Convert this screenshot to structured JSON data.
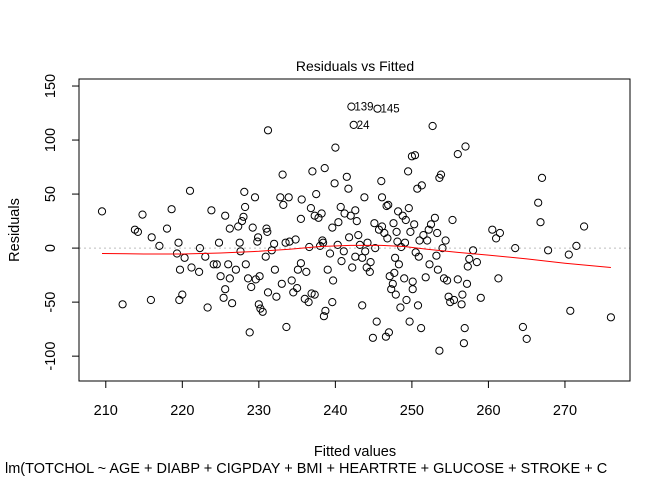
{
  "chart_data": {
    "type": "scatter",
    "title": "Residuals vs Fitted",
    "xlabel": "Fitted values",
    "ylabel": "Residuals",
    "subtitle": "lm(TOTCHOL ~ AGE + DIABP + CIGPDAY + BMI + HEARTRTE + GLUCOSE + STROKE + C",
    "xlim": [
      206.5,
      278.5
    ],
    "ylim": [
      -123.0,
      156.5
    ],
    "xticks": [
      210,
      220,
      230,
      240,
      250,
      260,
      270
    ],
    "yticks": [
      -100,
      -50,
      0,
      50,
      100,
      150
    ],
    "zero_line": 0,
    "zero_line_color": "#bebebe",
    "smoother_color": "#ff0000",
    "point_color": "#000000",
    "smoother": [
      [
        209.5,
        -5
      ],
      [
        215,
        -5.5
      ],
      [
        220,
        -5.5
      ],
      [
        225,
        -4.5
      ],
      [
        230,
        -3
      ],
      [
        234,
        -1
      ],
      [
        238,
        1.5
      ],
      [
        242,
        2.5
      ],
      [
        246,
        2.5
      ],
      [
        249,
        1.5
      ],
      [
        252,
        -1
      ],
      [
        256,
        -4
      ],
      [
        260,
        -6.5
      ],
      [
        265,
        -10
      ],
      [
        270,
        -14
      ],
      [
        276,
        -18
      ]
    ],
    "points": [
      [
        209.5,
        34
      ],
      [
        212.2,
        -52
      ],
      [
        213.8,
        17
      ],
      [
        214.2,
        15
      ],
      [
        214.8,
        31
      ],
      [
        216.0,
        10
      ],
      [
        215.9,
        -48
      ],
      [
        217.0,
        2
      ],
      [
        218.0,
        18
      ],
      [
        218.6,
        36
      ],
      [
        219.3,
        -5
      ],
      [
        219.5,
        5
      ],
      [
        219.6,
        -48
      ],
      [
        219.7,
        -20
      ],
      [
        220.0,
        -43
      ],
      [
        220.3,
        -9
      ],
      [
        221.0,
        53
      ],
      [
        221.2,
        -18
      ],
      [
        222.2,
        -22
      ],
      [
        222.3,
        0
      ],
      [
        223.0,
        -8
      ],
      [
        223.3,
        -55
      ],
      [
        223.8,
        35
      ],
      [
        224.1,
        -15
      ],
      [
        224.5,
        -15
      ],
      [
        224.8,
        5
      ],
      [
        225.0,
        -26
      ],
      [
        225.4,
        -46
      ],
      [
        225.6,
        30
      ],
      [
        225.6,
        -38
      ],
      [
        226.0,
        -15
      ],
      [
        226.2,
        18
      ],
      [
        226.2,
        -28
      ],
      [
        226.5,
        -51
      ],
      [
        227.0,
        -20
      ],
      [
        227.3,
        20
      ],
      [
        227.5,
        5
      ],
      [
        227.6,
        -3
      ],
      [
        227.8,
        25
      ],
      [
        228.0,
        29
      ],
      [
        228.1,
        52
      ],
      [
        228.2,
        38
      ],
      [
        228.3,
        -15
      ],
      [
        228.6,
        -28
      ],
      [
        228.8,
        -78
      ],
      [
        229.0,
        -36
      ],
      [
        229.2,
        19
      ],
      [
        229.5,
        47
      ],
      [
        229.6,
        -29
      ],
      [
        229.8,
        6
      ],
      [
        229.9,
        10
      ],
      [
        230.0,
        -52
      ],
      [
        230.1,
        -26
      ],
      [
        230.2,
        -56
      ],
      [
        230.5,
        -59
      ],
      [
        230.9,
        -8
      ],
      [
        231.0,
        18
      ],
      [
        231.1,
        15
      ],
      [
        231.2,
        109
      ],
      [
        231.2,
        -41
      ],
      [
        231.7,
        -2
      ],
      [
        232.0,
        4
      ],
      [
        232.1,
        -20
      ],
      [
        232.3,
        -45
      ],
      [
        232.8,
        47
      ],
      [
        233.0,
        -33
      ],
      [
        233.1,
        68
      ],
      [
        233.2,
        40
      ],
      [
        233.5,
        5
      ],
      [
        233.6,
        -73
      ],
      [
        233.9,
        47
      ],
      [
        234.0,
        6
      ],
      [
        234.3,
        -30
      ],
      [
        234.5,
        -41
      ],
      [
        234.8,
        8
      ],
      [
        235.0,
        -37
      ],
      [
        235.1,
        -20
      ],
      [
        235.5,
        27
      ],
      [
        235.5,
        -14
      ],
      [
        235.6,
        45
      ],
      [
        236.0,
        -47
      ],
      [
        236.2,
        -22
      ],
      [
        236.5,
        -50
      ],
      [
        236.6,
        1
      ],
      [
        236.8,
        37
      ],
      [
        236.9,
        -42
      ],
      [
        237.0,
        71
      ],
      [
        237.3,
        30
      ],
      [
        237.3,
        -43
      ],
      [
        237.5,
        50
      ],
      [
        237.8,
        28
      ],
      [
        238.0,
        2
      ],
      [
        238.2,
        32
      ],
      [
        238.3,
        7
      ],
      [
        238.4,
        5
      ],
      [
        238.5,
        -63
      ],
      [
        238.6,
        74
      ],
      [
        238.7,
        -58
      ],
      [
        239.0,
        -20
      ],
      [
        239.3,
        -5
      ],
      [
        239.6,
        19
      ],
      [
        239.6,
        -50
      ],
      [
        239.7,
        -30
      ],
      [
        239.9,
        60
      ],
      [
        240.0,
        93
      ],
      [
        240.3,
        3
      ],
      [
        240.4,
        24
      ],
      [
        240.7,
        38
      ],
      [
        240.8,
        -12
      ],
      [
        241.1,
        -3
      ],
      [
        241.2,
        32
      ],
      [
        241.5,
        66
      ],
      [
        241.7,
        55
      ],
      [
        241.8,
        10
      ],
      [
        242.0,
        30
      ],
      [
        242.1,
        131
      ],
      [
        242.2,
        -18
      ],
      [
        242.4,
        114
      ],
      [
        242.6,
        -8
      ],
      [
        242.6,
        35
      ],
      [
        242.8,
        25
      ],
      [
        243.0,
        12
      ],
      [
        243.2,
        3
      ],
      [
        243.5,
        -53
      ],
      [
        243.5,
        -9
      ],
      [
        243.8,
        47
      ],
      [
        243.9,
        -3
      ],
      [
        244.1,
        -18
      ],
      [
        244.2,
        5
      ],
      [
        244.5,
        -22
      ],
      [
        244.6,
        -13
      ],
      [
        244.9,
        -83
      ],
      [
        245.1,
        23
      ],
      [
        245.2,
        0
      ],
      [
        245.4,
        -68
      ],
      [
        245.5,
        129
      ],
      [
        245.7,
        17
      ],
      [
        246.0,
        62
      ],
      [
        246.1,
        47
      ],
      [
        246.1,
        20
      ],
      [
        246.4,
        14
      ],
      [
        246.6,
        -82
      ],
      [
        246.7,
        39
      ],
      [
        246.8,
        9
      ],
      [
        246.9,
        40
      ],
      [
        247.0,
        -78
      ],
      [
        247.1,
        -26
      ],
      [
        247.3,
        -38
      ],
      [
        247.5,
        -33
      ],
      [
        247.6,
        23
      ],
      [
        247.7,
        -23
      ],
      [
        247.8,
        -9
      ],
      [
        247.9,
        -43
      ],
      [
        248.0,
        15
      ],
      [
        248.1,
        6
      ],
      [
        248.2,
        34
      ],
      [
        248.3,
        -15
      ],
      [
        248.5,
        -55
      ],
      [
        248.6,
        1
      ],
      [
        248.8,
        30
      ],
      [
        249.0,
        -28
      ],
      [
        249.1,
        5
      ],
      [
        249.2,
        26
      ],
      [
        249.3,
        -48
      ],
      [
        249.5,
        71
      ],
      [
        249.6,
        37
      ],
      [
        249.7,
        -68
      ],
      [
        249.8,
        15
      ],
      [
        250.0,
        85
      ],
      [
        250.1,
        -31
      ],
      [
        250.1,
        -38
      ],
      [
        250.3,
        22
      ],
      [
        250.4,
        86
      ],
      [
        250.5,
        -4
      ],
      [
        250.7,
        55
      ],
      [
        250.8,
        -53
      ],
      [
        250.9,
        -8
      ],
      [
        251.0,
        7
      ],
      [
        251.2,
        -74
      ],
      [
        251.3,
        58
      ],
      [
        251.5,
        12
      ],
      [
        251.8,
        -27
      ],
      [
        252.0,
        7
      ],
      [
        252.2,
        17
      ],
      [
        252.3,
        -15
      ],
      [
        252.5,
        22
      ],
      [
        252.7,
        113
      ],
      [
        253.0,
        28
      ],
      [
        253.2,
        -7
      ],
      [
        253.3,
        14
      ],
      [
        253.4,
        -20
      ],
      [
        253.6,
        65
      ],
      [
        253.6,
        -95
      ],
      [
        253.8,
        68
      ],
      [
        254.0,
        0
      ],
      [
        254.2,
        -28
      ],
      [
        254.4,
        7
      ],
      [
        254.6,
        -30
      ],
      [
        254.8,
        -45
      ],
      [
        255.0,
        -50
      ],
      [
        255.3,
        26
      ],
      [
        255.5,
        -48
      ],
      [
        256.0,
        87
      ],
      [
        256.0,
        -29
      ],
      [
        256.5,
        -52
      ],
      [
        256.6,
        -43
      ],
      [
        256.8,
        -88
      ],
      [
        256.9,
        -74
      ],
      [
        257.0,
        94
      ],
      [
        257.2,
        -33
      ],
      [
        257.3,
        -17
      ],
      [
        257.5,
        -10
      ],
      [
        258.0,
        -2
      ],
      [
        258.5,
        -13
      ],
      [
        259.0,
        -46
      ],
      [
        260.5,
        17
      ],
      [
        261.0,
        9
      ],
      [
        261.3,
        -28
      ],
      [
        261.5,
        14
      ],
      [
        263.5,
        0
      ],
      [
        264.5,
        -73
      ],
      [
        265.0,
        -84
      ],
      [
        266.5,
        42
      ],
      [
        266.8,
        24
      ],
      [
        267.0,
        65
      ],
      [
        267.8,
        -2
      ],
      [
        270.5,
        -6
      ],
      [
        270.7,
        -58
      ],
      [
        271.5,
        2
      ],
      [
        272.5,
        20
      ],
      [
        276.0,
        -64
      ]
    ],
    "point_labels": [
      {
        "text": "139",
        "x": 242.1,
        "y": 131
      },
      {
        "text": "145",
        "x": 245.5,
        "y": 129
      },
      {
        "text": "24",
        "x": 242.4,
        "y": 114
      }
    ]
  }
}
